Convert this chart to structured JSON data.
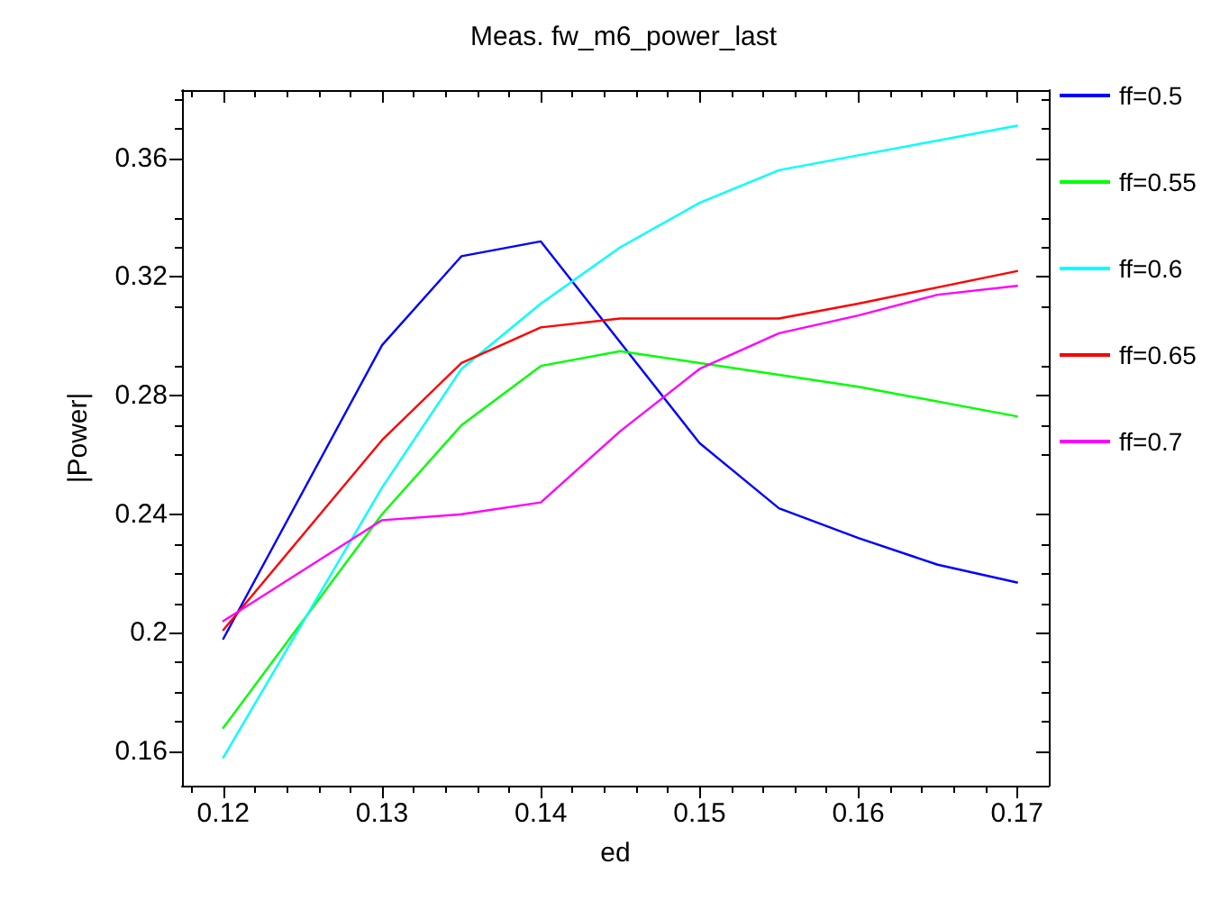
{
  "chart_data": {
    "type": "line",
    "title": "Meas. fw_m6_power_last",
    "xlabel": "ed",
    "ylabel": "|Power|",
    "xlim": [
      0.1174,
      0.172
    ],
    "xticks": [
      0.12,
      0.13,
      0.14,
      0.15,
      0.16,
      0.17
    ],
    "ylim": [
      0.1485,
      0.383
    ],
    "yticks": [
      0.16,
      0.2,
      0.24,
      0.28,
      0.32,
      0.36
    ],
    "grid": false,
    "legend": "right",
    "marker": "none",
    "line_style": "solid",
    "series": [
      {
        "name": "ff=0.5",
        "color": "#0000ff",
        "x": [
          0.12,
          0.13,
          0.135,
          0.14,
          0.15,
          0.155,
          0.16,
          0.165,
          0.17
        ],
        "values": [
          0.198,
          0.297,
          0.327,
          0.332,
          0.264,
          0.242,
          0.232,
          0.223,
          0.217
        ]
      },
      {
        "name": "ff=0.55",
        "color": "#00ff00",
        "x": [
          0.12,
          0.13,
          0.135,
          0.14,
          0.145,
          0.155,
          0.16,
          0.17
        ],
        "values": [
          0.168,
          0.24,
          0.27,
          0.29,
          0.295,
          0.287,
          0.283,
          0.273
        ]
      },
      {
        "name": "ff=0.6",
        "color": "#00ffff",
        "x": [
          0.12,
          0.13,
          0.135,
          0.14,
          0.145,
          0.15,
          0.155,
          0.16,
          0.165,
          0.17
        ],
        "values": [
          0.158,
          0.249,
          0.289,
          0.311,
          0.33,
          0.345,
          0.356,
          0.361,
          0.366,
          0.371
        ]
      },
      {
        "name": "ff=0.65",
        "color": "#ff0000",
        "x": [
          0.12,
          0.13,
          0.135,
          0.14,
          0.145,
          0.155,
          0.16,
          0.17
        ],
        "values": [
          0.201,
          0.265,
          0.291,
          0.303,
          0.306,
          0.306,
          0.311,
          0.322
        ]
      },
      {
        "name": "ff=0.7",
        "color": "#ff00ff",
        "x": [
          0.12,
          0.13,
          0.135,
          0.14,
          0.145,
          0.15,
          0.155,
          0.16,
          0.165,
          0.17
        ],
        "values": [
          0.204,
          0.238,
          0.24,
          0.244,
          0.268,
          0.289,
          0.301,
          0.307,
          0.314,
          0.317
        ]
      }
    ]
  }
}
